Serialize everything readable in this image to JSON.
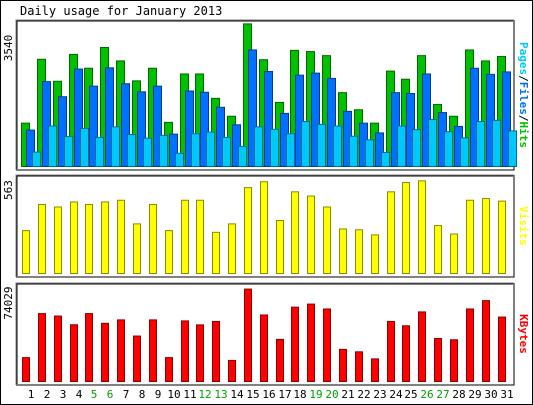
{
  "chart_data": {
    "type": "bar",
    "title": "Daily usage for January 2013",
    "days": [
      "1",
      "2",
      "3",
      "4",
      "5",
      "6",
      "7",
      "8",
      "9",
      "10",
      "11",
      "12",
      "13",
      "14",
      "15",
      "16",
      "17",
      "18",
      "19",
      "20",
      "21",
      "22",
      "23",
      "24",
      "25",
      "26",
      "27",
      "28",
      "29",
      "30",
      "31"
    ],
    "weekend_days": [
      "5",
      "6",
      "12",
      "13",
      "19",
      "20",
      "26",
      "27"
    ],
    "panels": [
      {
        "id": "hits",
        "ymax_label": "3540",
        "ymax": 3540,
        "side_label": [
          "Pages",
          "/",
          "Files",
          "/",
          "Hits"
        ],
        "series": [
          {
            "name": "Hits",
            "color": "#00c000",
            "values": [
              1090,
              2660,
              2120,
              2780,
              2440,
              2950,
              2620,
              2130,
              2440,
              1110,
              2300,
              2300,
              1700,
              1260,
              3530,
              2650,
              1600,
              2880,
              2850,
              2750,
              1840,
              1420,
              1090,
              2370,
              2170,
              2750,
              1550,
              1260,
              2890,
              2620,
              2730
            ]
          },
          {
            "name": "Files",
            "color": "#0070ff",
            "values": [
              920,
              2110,
              1740,
              2420,
              2000,
              2450,
              2060,
              1860,
              2000,
              820,
              1880,
              1850,
              1480,
              1050,
              2890,
              2360,
              1330,
              2270,
              2320,
              2190,
              1380,
              1090,
              850,
              1840,
              1820,
              2300,
              1350,
              1010,
              2440,
              2290,
              2350
            ]
          },
          {
            "name": "Pages",
            "color": "#00c8ff",
            "values": [
              380,
              1020,
              760,
              960,
              740,
              1000,
              810,
              720,
              790,
              350,
              830,
              870,
              740,
              520,
              1000,
              940,
              830,
              1130,
              1060,
              1020,
              770,
              680,
              370,
              1020,
              930,
              1180,
              880,
              730,
              1130,
              1160,
              900
            ]
          }
        ]
      },
      {
        "id": "visits",
        "ymax_label": "563",
        "ymax": 563,
        "side_label": [
          "Visits"
        ],
        "series": [
          {
            "name": "Visits",
            "color": "#ffff00",
            "values": [
              260,
              415,
              400,
              430,
              415,
              430,
              440,
              300,
              415,
              260,
              440,
              440,
              250,
              300,
              515,
              550,
              320,
              490,
              465,
              400,
              270,
              265,
              235,
              490,
              545,
              555,
              290,
              240,
              440,
              450,
              435
            ]
          }
        ]
      },
      {
        "id": "kbytes",
        "ymax_label": "74029",
        "ymax": 74029,
        "side_label": [
          "KBytes"
        ],
        "series": [
          {
            "name": "KBytes",
            "color": "#ff0000",
            "values": [
              19400,
              53700,
              51800,
              45000,
              53700,
              46100,
              48800,
              36200,
              48800,
              19400,
              48000,
              44900,
              47600,
              17200,
              72800,
              52600,
              33600,
              58700,
              61100,
              57300,
              25800,
              23900,
              18400,
              47600,
              44200,
              55000,
              34300,
              33300,
              57300,
              63800,
              51000
            ]
          }
        ]
      }
    ]
  }
}
